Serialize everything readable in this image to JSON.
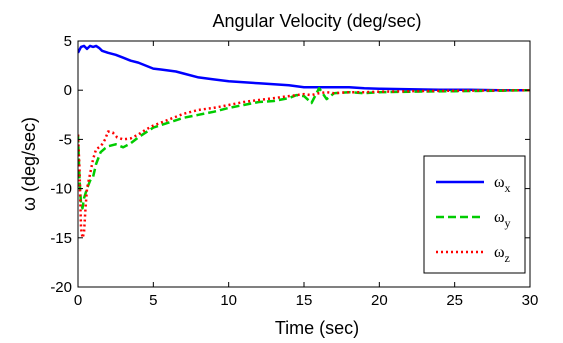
{
  "chart_data": {
    "type": "line",
    "title": "Angular Velocity (deg/sec)",
    "xlabel": "Time (sec)",
    "ylabel": "ω (deg/sec)",
    "xlim": [
      0,
      30
    ],
    "ylim": [
      -20,
      5
    ],
    "xticks": [
      0,
      5,
      10,
      15,
      20,
      25,
      30
    ],
    "yticks": [
      5,
      0,
      -5,
      -10,
      -15,
      -20
    ],
    "grid": false,
    "legend_position": "bottom-right",
    "series": [
      {
        "name": "ωx",
        "name_base": "ω",
        "name_sub": "x",
        "color": "#0000ff",
        "style": "solid",
        "x": [
          0,
          0.2,
          0.4,
          0.6,
          0.8,
          1.0,
          1.2,
          1.4,
          1.6,
          2.0,
          2.5,
          3.0,
          3.5,
          4.0,
          4.5,
          5.0,
          5.5,
          6.0,
          6.5,
          7.0,
          8.0,
          9.0,
          10.0,
          11.0,
          12.0,
          13.0,
          14.0,
          15.0,
          16.0,
          17.0,
          18.0,
          19.0,
          20.0,
          22.0,
          24.0,
          26.0,
          28.0,
          30.0
        ],
        "y": [
          3.8,
          4.4,
          4.5,
          4.2,
          4.5,
          4.4,
          4.5,
          4.3,
          4.0,
          3.8,
          3.6,
          3.3,
          3.0,
          2.8,
          2.5,
          2.2,
          2.1,
          2.0,
          1.9,
          1.7,
          1.3,
          1.1,
          0.9,
          0.8,
          0.7,
          0.6,
          0.5,
          0.3,
          0.3,
          0.3,
          0.3,
          0.2,
          0.15,
          0.1,
          0.05,
          0.05,
          0.0,
          0.0
        ]
      },
      {
        "name": "ωy",
        "name_base": "ω",
        "name_sub": "y",
        "color": "#00cc00",
        "style": "dashed",
        "x": [
          0,
          0.1,
          0.2,
          0.3,
          0.4,
          0.5,
          0.6,
          0.8,
          1.0,
          1.2,
          1.5,
          1.8,
          2.0,
          2.5,
          3.0,
          3.5,
          4.0,
          5.0,
          6.0,
          7.0,
          8.0,
          9.0,
          10.0,
          11.0,
          12.0,
          13.0,
          14.0,
          14.5,
          15.0,
          15.5,
          16.0,
          16.5,
          17.0,
          18.0,
          19.0,
          20.0,
          22.0,
          25.0,
          28.0,
          30.0
        ],
        "y": [
          -4.5,
          -9.0,
          -11.5,
          -12.0,
          -11.0,
          -10.5,
          -10.0,
          -9.2,
          -8.8,
          -7.5,
          -6.3,
          -5.9,
          -5.7,
          -5.5,
          -5.8,
          -5.4,
          -4.8,
          -3.8,
          -3.3,
          -2.8,
          -2.5,
          -2.2,
          -1.8,
          -1.5,
          -1.2,
          -1.1,
          -0.8,
          -0.5,
          -0.6,
          -1.3,
          0.2,
          -0.9,
          -0.3,
          -0.2,
          -0.3,
          -0.2,
          -0.15,
          -0.1,
          -0.05,
          0.0
        ]
      },
      {
        "name": "ωz",
        "name_base": "ω",
        "name_sub": "z",
        "color": "#ff0000",
        "style": "dotted",
        "x": [
          0,
          0.1,
          0.2,
          0.3,
          0.4,
          0.5,
          0.6,
          0.8,
          1.0,
          1.2,
          1.4,
          1.6,
          1.8,
          2.0,
          2.3,
          2.6,
          3.0,
          3.5,
          4.0,
          4.5,
          5.0,
          6.0,
          7.0,
          8.0,
          9.0,
          10.0,
          11.0,
          12.0,
          13.0,
          14.0,
          14.5,
          15.0,
          15.5,
          16.0,
          16.5,
          17.0,
          18.0,
          19.0,
          20.0,
          22.0,
          25.0,
          28.0,
          30.0
        ],
        "y": [
          -4.5,
          -8.0,
          -14.0,
          -15.0,
          -14.5,
          -12.0,
          -10.0,
          -8.5,
          -7.0,
          -6.0,
          -5.8,
          -5.5,
          -5.0,
          -4.2,
          -4.3,
          -4.8,
          -5.0,
          -4.9,
          -4.5,
          -4.0,
          -3.6,
          -3.0,
          -2.4,
          -2.0,
          -1.8,
          -1.5,
          -1.2,
          -1.0,
          -0.8,
          -0.6,
          -0.5,
          -0.4,
          -0.5,
          -0.3,
          -0.2,
          -0.3,
          -0.2,
          -0.2,
          -0.15,
          -0.1,
          -0.05,
          -0.02,
          0.0
        ]
      }
    ]
  }
}
